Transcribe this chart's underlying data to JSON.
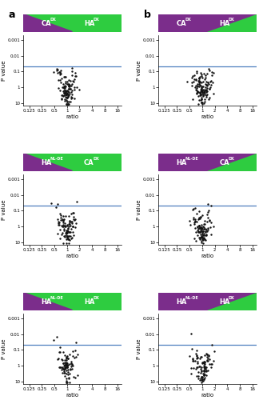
{
  "panels": [
    {
      "label": "a",
      "col": 0,
      "row": 0,
      "left_text": "CA",
      "left_super": "DK",
      "right_text": "HA",
      "right_super": "DK",
      "left_color": "#7B2D8B",
      "right_color": "#2ECC40",
      "triangle_direction": "right",
      "scatter_seed": 42,
      "n_points": 120
    },
    {
      "label": "b",
      "col": 1,
      "row": 0,
      "left_text": "CA",
      "left_super": "DK",
      "right_text": "HA",
      "right_super": "DK",
      "left_color": "#7B2D8B",
      "right_color": "#2ECC40",
      "triangle_direction": "left",
      "scatter_seed": 43,
      "n_points": 130
    },
    {
      "label": "",
      "col": 0,
      "row": 1,
      "left_text": "HA",
      "left_super": "NL-DE",
      "right_text": "CA",
      "right_super": "DK",
      "left_color": "#7B2D8B",
      "right_color": "#2ECC40",
      "triangle_direction": "right",
      "scatter_seed": 44,
      "n_points": 100
    },
    {
      "label": "",
      "col": 1,
      "row": 1,
      "left_text": "HA",
      "left_super": "NL-DE",
      "right_text": "CA",
      "right_super": "DK",
      "left_color": "#7B2D8B",
      "right_color": "#2ECC40",
      "triangle_direction": "left",
      "scatter_seed": 45,
      "n_points": 110
    },
    {
      "label": "",
      "col": 0,
      "row": 2,
      "left_text": "HA",
      "left_super": "NL-DE",
      "right_text": "HA",
      "right_super": "DK",
      "left_color": "#7B2D8B",
      "right_color": "#2ECC40",
      "triangle_direction": "right",
      "scatter_seed": 46,
      "n_points": 90
    },
    {
      "label": "",
      "col": 1,
      "row": 2,
      "left_text": "HA",
      "left_super": "NL-DE",
      "right_text": "HA",
      "right_super": "DK",
      "left_color": "#7B2D8B",
      "right_color": "#2ECC40",
      "triangle_direction": "left",
      "scatter_seed": 47,
      "n_points": 100
    }
  ],
  "bg_color": "#FFFFFF",
  "line_color": "#4F7FBF",
  "p_threshold": 0.05,
  "dot_color": "#111111",
  "dot_size": 3,
  "xlabel": "ratio",
  "ylabel": "P value",
  "x_ticks": [
    0.125,
    0.25,
    0.5,
    1,
    2,
    4,
    8,
    16
  ],
  "x_tick_labels": [
    "0.125",
    "0.25",
    "0.5",
    "1",
    "2",
    "4",
    "8",
    "16"
  ],
  "y_ticks": [
    0.001,
    0.01,
    0.1,
    1,
    10
  ],
  "y_tick_labels": [
    "0.001",
    "0.01",
    "0.1",
    "1",
    "10"
  ],
  "ylim_top": 0.0005,
  "ylim_bottom": 15,
  "xlim_left": 0.09,
  "xlim_right": 20
}
